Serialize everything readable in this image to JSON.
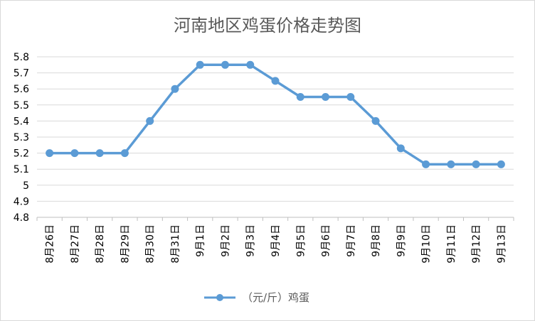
{
  "chart_data": {
    "type": "line",
    "title": "河南地区鸡蛋价格走势图",
    "xlabel": "",
    "ylabel": "",
    "categories": [
      "8月26日",
      "8月27日",
      "8月28日",
      "8月29日",
      "8月30日",
      "8月31日",
      "9月1日",
      "9月2日",
      "9月3日",
      "9月4日",
      "9月5日",
      "9月6日",
      "9月7日",
      "9月8日",
      "9月9日",
      "9月10日",
      "9月11日",
      "9月12日",
      "9月13日"
    ],
    "series": [
      {
        "name": "（元/斤）鸡蛋",
        "values": [
          5.2,
          5.2,
          5.2,
          5.2,
          5.4,
          5.6,
          5.75,
          5.75,
          5.75,
          5.65,
          5.55,
          5.55,
          5.55,
          5.4,
          5.23,
          5.13,
          5.13,
          5.13,
          5.13
        ]
      }
    ],
    "yticks": [
      "4.8",
      "4.9",
      "5",
      "5.1",
      "5.2",
      "5.3",
      "5.4",
      "5.5",
      "5.6",
      "5.7",
      "5.8"
    ],
    "ylim": [
      4.8,
      5.8
    ],
    "grid": true,
    "legend": "bottom",
    "colors": {
      "line": "#5b9bd5",
      "grid": "#d9d9d9",
      "axis": "#bfbfbf"
    }
  }
}
